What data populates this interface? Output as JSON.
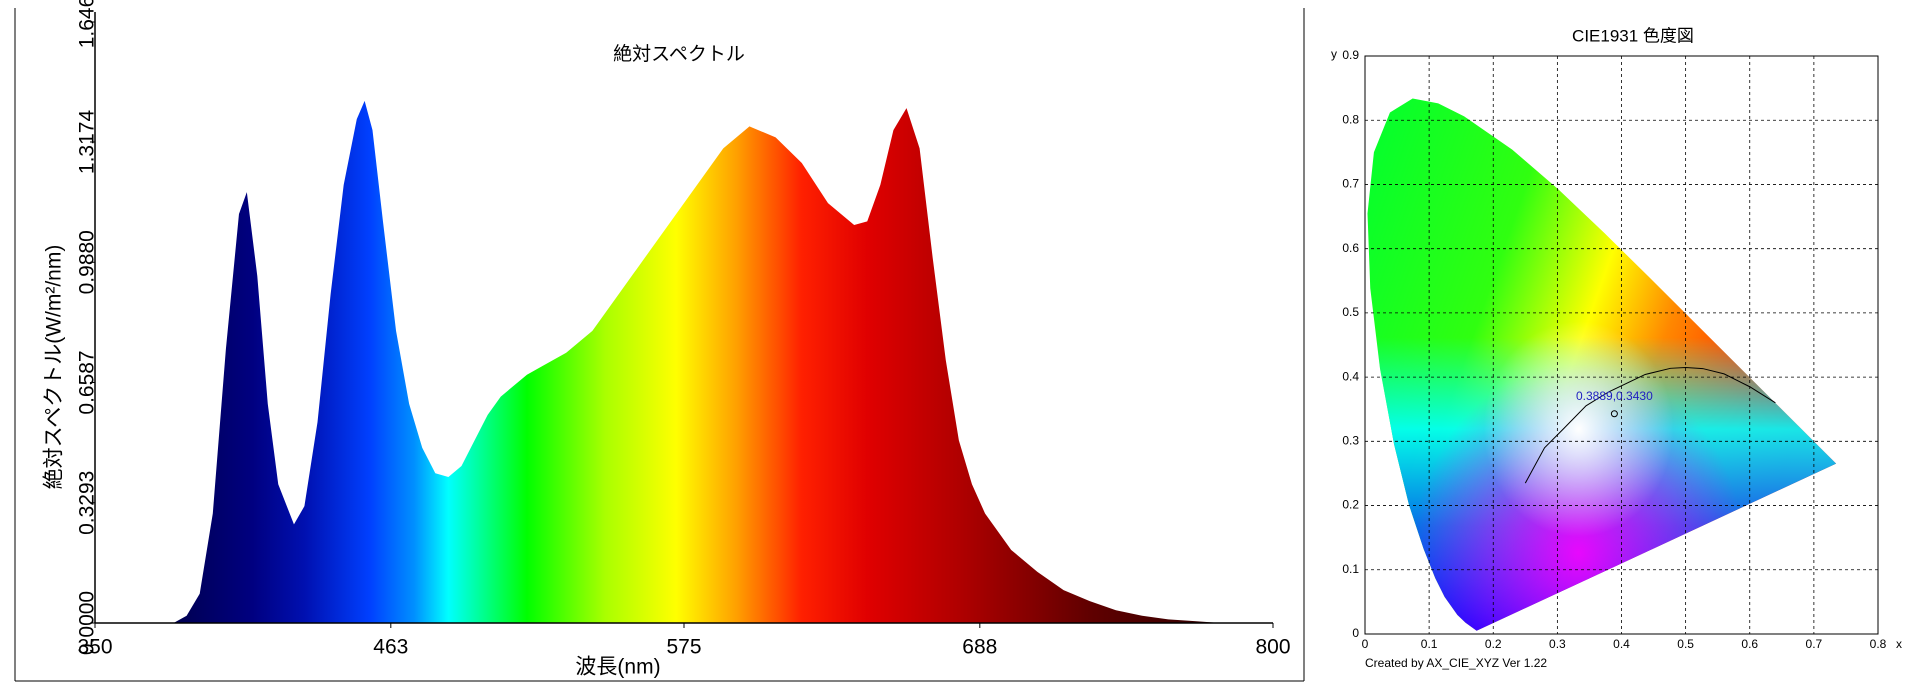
{
  "chart_data": [
    {
      "type": "area",
      "title": "絶対スペクトル",
      "x_label": "波長(nm)",
      "y_label": "絶対スペクトル(W/m²/nm)",
      "x": [
        380,
        385,
        390,
        395,
        400,
        405,
        408,
        412,
        416,
        420,
        426,
        430,
        435,
        440,
        445,
        450,
        453,
        456,
        460,
        465,
        470,
        475,
        480,
        485,
        490,
        495,
        500,
        505,
        510,
        515,
        520,
        530,
        540,
        550,
        560,
        570,
        580,
        590,
        600,
        610,
        620,
        630,
        640,
        645,
        650,
        655,
        660,
        665,
        670,
        675,
        680,
        685,
        690,
        700,
        710,
        720,
        730,
        740,
        750,
        760,
        770,
        780
      ],
      "values": [
        0,
        0.02,
        0.08,
        0.3,
        0.75,
        1.12,
        1.18,
        0.95,
        0.6,
        0.38,
        0.27,
        0.32,
        0.55,
        0.9,
        1.2,
        1.38,
        1.43,
        1.35,
        1.1,
        0.8,
        0.6,
        0.48,
        0.41,
        0.4,
        0.43,
        0.5,
        0.57,
        0.62,
        0.65,
        0.68,
        0.7,
        0.74,
        0.8,
        0.9,
        1.0,
        1.1,
        1.2,
        1.3,
        1.36,
        1.33,
        1.26,
        1.15,
        1.09,
        1.1,
        1.2,
        1.35,
        1.41,
        1.3,
        1.0,
        0.72,
        0.5,
        0.38,
        0.3,
        0.2,
        0.14,
        0.09,
        0.06,
        0.035,
        0.02,
        0.01,
        0.005,
        0
      ],
      "xlim": [
        350,
        800
      ],
      "xticks": [
        350,
        463,
        575,
        688,
        800
      ],
      "ylim": [
        0,
        1.646
      ],
      "yticks": [
        {
          "value": 0,
          "label": "0.0000"
        },
        0.3293,
        0.6587,
        {
          "value": 0.988,
          "label": "0.9880"
        },
        1.3174,
        1.646
      ],
      "grid": false
    },
    {
      "type": "chromaticity",
      "title": "CIE1931 色度図",
      "x_label": "x",
      "y_label": "y",
      "footer": "Created by AX_CIE_XYZ Ver 1.22",
      "xlim": [
        0,
        0.8
      ],
      "xticks": [
        0,
        0.1,
        0.2,
        0.3,
        0.4,
        0.5,
        0.6,
        0.7,
        0.8
      ],
      "ylim": [
        0,
        0.9
      ],
      "yticks": [
        0,
        0.1,
        0.2,
        0.3,
        0.4,
        0.5,
        0.6,
        0.7,
        0.8,
        0.9
      ],
      "grid": true,
      "boundary": {
        "x": [
          0.1741,
          0.1566,
          0.144,
          0.1241,
          0.1096,
          0.0913,
          0.0687,
          0.0454,
          0.0235,
          0.0082,
          0.0039,
          0.0139,
          0.0389,
          0.0743,
          0.1142,
          0.1547,
          0.2296,
          0.3016,
          0.3731,
          0.4441,
          0.5125,
          0.5752,
          0.627,
          0.6915,
          0.719,
          0.7347
        ],
        "y": [
          0.005,
          0.0177,
          0.0297,
          0.0578,
          0.0868,
          0.1327,
          0.2007,
          0.295,
          0.4127,
          0.5384,
          0.6548,
          0.7502,
          0.812,
          0.8338,
          0.8262,
          0.8059,
          0.7543,
          0.6923,
          0.6245,
          0.5547,
          0.4866,
          0.4242,
          0.3725,
          0.3083,
          0.2809,
          0.2653
        ]
      },
      "locus": {
        "x": [
          0.25,
          0.28,
          0.31,
          0.3447,
          0.38,
          0.4369,
          0.4764,
          0.5,
          0.5267,
          0.56,
          0.6,
          0.64
        ],
        "y": [
          0.235,
          0.29,
          0.32,
          0.3553,
          0.377,
          0.4041,
          0.4137,
          0.415,
          0.4133,
          0.405,
          0.385,
          0.36
        ]
      },
      "point": {
        "x": 0.3889,
        "y": 0.343,
        "annotation": "0.3889,0.3430"
      }
    }
  ]
}
